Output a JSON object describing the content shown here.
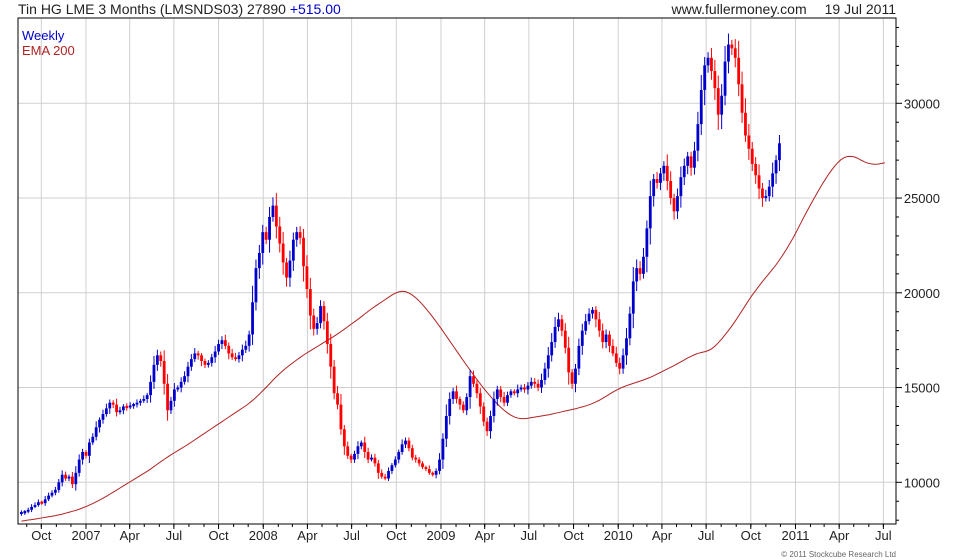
{
  "header": {
    "symbol_title": "Tin HG LME 3 Months (LMSNDS03) 27890",
    "change": "+515.00",
    "site": "www.fullermoney.com",
    "date": "19 Jul 2011"
  },
  "legend": {
    "series1": "Weekly",
    "series2": "EMA 200"
  },
  "copyright": "© 2011 Stockcube Research Ltd",
  "colors": {
    "up": "#0000cc",
    "down": "#ff0000",
    "ema": "#b22222",
    "grid": "#d0d0d0"
  },
  "chart_data": {
    "type": "candlestick",
    "yscale": "linear",
    "ylim": [
      7800,
      34500
    ],
    "grid": true,
    "legend_position": "top-left",
    "y_ticks": [
      {
        "label": "10000",
        "value": 10000
      },
      {
        "label": "15000",
        "value": 15000
      },
      {
        "label": "20000",
        "value": 20000
      },
      {
        "label": "25000",
        "value": 25000
      },
      {
        "label": "30000",
        "value": 30000
      }
    ],
    "x_ticks": [
      {
        "label": "Oct",
        "date": "2006-10-01"
      },
      {
        "label": "2007",
        "date": "2007-01-01"
      },
      {
        "label": "Apr",
        "date": "2007-04-01"
      },
      {
        "label": "Jul",
        "date": "2007-07-01"
      },
      {
        "label": "Oct",
        "date": "2007-10-01"
      },
      {
        "label": "2008",
        "date": "2008-01-01"
      },
      {
        "label": "Apr",
        "date": "2008-04-01"
      },
      {
        "label": "Jul",
        "date": "2008-07-01"
      },
      {
        "label": "Oct",
        "date": "2008-10-01"
      },
      {
        "label": "2009",
        "date": "2009-01-01"
      },
      {
        "label": "Apr",
        "date": "2009-04-01"
      },
      {
        "label": "Jul",
        "date": "2009-07-01"
      },
      {
        "label": "Oct",
        "date": "2009-10-01"
      },
      {
        "label": "2010",
        "date": "2010-01-01"
      },
      {
        "label": "Apr",
        "date": "2010-04-01"
      },
      {
        "label": "Jul",
        "date": "2010-07-01"
      },
      {
        "label": "Oct",
        "date": "2010-10-01"
      },
      {
        "label": "2011",
        "date": "2011-01-01"
      },
      {
        "label": "Apr",
        "date": "2011-04-01"
      },
      {
        "label": "Jul",
        "date": "2011-07-01"
      }
    ],
    "weekly_close": {
      "start_date": "2006-08-21",
      "interval_days": 7,
      "values": [
        8400,
        8450,
        8550,
        8700,
        8800,
        8950,
        8900,
        9100,
        9300,
        9450,
        9600,
        10000,
        10400,
        10200,
        10300,
        9900,
        10500,
        11200,
        11600,
        11400,
        12100,
        12400,
        12900,
        13300,
        13600,
        13900,
        14200,
        14100,
        13700,
        13800,
        14000,
        13950,
        14050,
        14100,
        14200,
        14300,
        14400,
        14600,
        15300,
        16200,
        16700,
        16400,
        15200,
        13800,
        14300,
        14900,
        15000,
        15300,
        15600,
        16100,
        16500,
        16800,
        16700,
        16400,
        16200,
        16300,
        16600,
        16900,
        17300,
        17500,
        17200,
        16800,
        16600,
        16500,
        16700,
        17000,
        17200,
        17800,
        19500,
        21300,
        22100,
        23200,
        22800,
        24000,
        24600,
        23500,
        22600,
        21600,
        20800,
        21700,
        22800,
        23200,
        22900,
        21400,
        20200,
        18800,
        18100,
        18400,
        19300,
        18500,
        17300,
        16100,
        14700,
        14100,
        12800,
        11900,
        11400,
        11200,
        11500,
        11900,
        12100,
        11600,
        11200,
        11300,
        11000,
        10500,
        10300,
        10200,
        10600,
        10900,
        11200,
        11600,
        12000,
        12200,
        11800,
        11300,
        11200,
        11000,
        10800,
        10700,
        10500,
        10400,
        10600,
        11200,
        12300,
        13500,
        14400,
        14800,
        14400,
        14100,
        13800,
        14500,
        15600,
        15200,
        14700,
        14000,
        13200,
        12700,
        13500,
        14400,
        14900,
        14500,
        14200,
        14600,
        14800,
        14700,
        14900,
        15000,
        14900,
        15100,
        15300,
        15200,
        15000,
        15400,
        16000,
        16700,
        17400,
        18200,
        18600,
        18000,
        17100,
        15800,
        15200,
        16000,
        17200,
        18000,
        18500,
        18900,
        19100,
        18600,
        18000,
        17400,
        17800,
        17200,
        16800,
        16300,
        16000,
        16700,
        17600,
        18900,
        20600,
        21300,
        21000,
        21900,
        23400,
        25100,
        26000,
        25800,
        26300,
        26700,
        25900,
        25000,
        24300,
        25100,
        26100,
        26700,
        27200,
        26600,
        27500,
        28900,
        30700,
        32000,
        32400,
        31700,
        30800,
        29400,
        30400,
        32200,
        33100,
        32900,
        32400,
        31000,
        29500,
        28300,
        27600,
        26800,
        26200,
        25500,
        25000,
        25100,
        25600,
        26300,
        27000,
        27890
      ]
    },
    "ema200": {
      "start_date": "2006-08-21",
      "interval_days": 7,
      "values": [
        7950,
        7980,
        8010,
        8030,
        8060,
        8090,
        8120,
        8150,
        8180,
        8210,
        8240,
        8280,
        8320,
        8370,
        8420,
        8470,
        8520,
        8580,
        8650,
        8720,
        8800,
        8880,
        8970,
        9060,
        9160,
        9260,
        9370,
        9480,
        9590,
        9700,
        9810,
        9920,
        10030,
        10140,
        10250,
        10360,
        10470,
        10580,
        10700,
        10830,
        10960,
        11090,
        11210,
        11330,
        11450,
        11560,
        11670,
        11780,
        11890,
        12000,
        12120,
        12240,
        12360,
        12480,
        12600,
        12720,
        12840,
        12960,
        13080,
        13200,
        13320,
        13440,
        13560,
        13680,
        13800,
        13920,
        14040,
        14170,
        14320,
        14480,
        14650,
        14830,
        15010,
        15200,
        15390,
        15570,
        15740,
        15900,
        16050,
        16190,
        16330,
        16460,
        16590,
        16710,
        16830,
        16940,
        17050,
        17160,
        17270,
        17380,
        17490,
        17600,
        17710,
        17830,
        17950,
        18080,
        18210,
        18340,
        18470,
        18600,
        18740,
        18880,
        19020,
        19150,
        19280,
        19400,
        19520,
        19640,
        19760,
        19880,
        19980,
        20050,
        20080,
        20060,
        19990,
        19880,
        19740,
        19570,
        19380,
        19170,
        18950,
        18720,
        18480,
        18230,
        17980,
        17720,
        17460,
        17200,
        16940,
        16680,
        16420,
        16170,
        15920,
        15670,
        15430,
        15190,
        14960,
        14740,
        14530,
        14330,
        14140,
        13960,
        13800,
        13660,
        13540,
        13450,
        13390,
        13360,
        13360,
        13380,
        13410,
        13440,
        13470,
        13500,
        13530,
        13560,
        13600,
        13640,
        13680,
        13720,
        13760,
        13800,
        13840,
        13880,
        13930,
        13980,
        14030,
        14090,
        14160,
        14240,
        14330,
        14430,
        14540,
        14650,
        14760,
        14860,
        14950,
        15030,
        15100,
        15160,
        15220,
        15280,
        15340,
        15400,
        15470,
        15540,
        15620,
        15710,
        15800,
        15890,
        15980,
        16070,
        16160,
        16260,
        16360,
        16460,
        16560,
        16650,
        16730,
        16800,
        16850,
        16890,
        16950,
        17040,
        17180,
        17360,
        17560,
        17780,
        18010,
        18250,
        18510,
        18780,
        19060,
        19340,
        19620,
        19880,
        20120,
        20360,
        20590,
        20810,
        21030,
        21250,
        21480,
        21730,
        22000,
        22280,
        22580,
        22890,
        23230,
        23580,
        23930,
        24270,
        24600,
        24920,
        25240,
        25550,
        25850,
        26130,
        26390,
        26630,
        26840,
        27010,
        27130,
        27190,
        27200,
        27170,
        27100,
        27000,
        26910,
        26840,
        26800,
        26780,
        26790,
        26820,
        26860
      ]
    }
  }
}
